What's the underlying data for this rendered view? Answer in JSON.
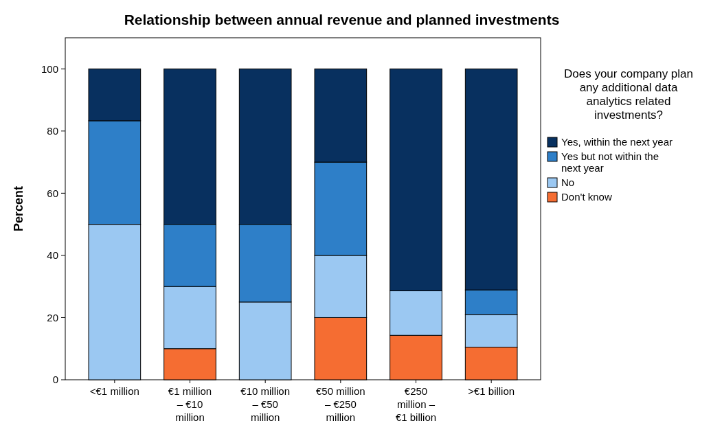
{
  "chart_data": {
    "type": "bar",
    "title": "Relationship between annual revenue and planned investments",
    "ylabel": "Percent",
    "legend_title": "Does your company plan any additional data analytics related investments?",
    "categories": [
      "<€1 million",
      "€1 million – €10 million",
      "€10 million – €50 million",
      "€50 million – €250 million",
      "€250 million – €1 billion",
      ">€1 billion"
    ],
    "stacked": true,
    "ylim": [
      0,
      110
    ],
    "yticks": [
      0,
      20,
      40,
      60,
      80,
      100
    ],
    "grid": false,
    "legend": "right",
    "series": [
      {
        "name": "Don't know",
        "color": "#f56d32",
        "values": [
          0,
          10,
          0,
          20,
          14.3,
          10.5
        ]
      },
      {
        "name": "No",
        "color": "#9bc8f2",
        "values": [
          50,
          20,
          25,
          20,
          14.3,
          10.5
        ]
      },
      {
        "name": "Yes but not within the next year",
        "color": "#2e7fc8",
        "values": [
          33.3,
          20,
          25,
          30,
          0,
          7.9
        ]
      },
      {
        "name": "Yes, within the next year",
        "color": "#08305f",
        "values": [
          16.7,
          50,
          50,
          30,
          71.4,
          71.1
        ]
      }
    ]
  }
}
